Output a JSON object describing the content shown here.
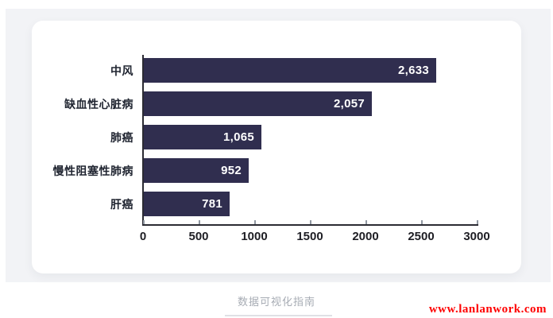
{
  "page": {
    "footer_caption": "数据可视化指南",
    "watermark": "www.lanlanwork.com",
    "colors": {
      "background": "#ffffff",
      "panel": "#f2f3f6",
      "card": "#ffffff",
      "bar": "#302e4f",
      "axis": "#2b2b33",
      "tick": "#9097a1",
      "category_label": "#1f2430",
      "value_label": "#ffffff",
      "caption": "#a7acb4",
      "watermark": "#ff0000"
    }
  },
  "chart_data": {
    "type": "bar",
    "orientation": "horizontal",
    "title": "",
    "xlabel": "",
    "ylabel": "",
    "categories": [
      "中风",
      "缺血性心脏病",
      "肺癌",
      "慢性阻塞性肺病",
      "肝癌"
    ],
    "values": [
      2633,
      2057,
      1065,
      952,
      781
    ],
    "value_labels": [
      "2,633",
      "2,057",
      "1,065",
      "952",
      "781"
    ],
    "xlim": [
      0,
      3000
    ],
    "x_ticks": [
      0,
      500,
      1000,
      1500,
      2000,
      2500,
      3000
    ],
    "x_tick_labels": [
      "0",
      "500",
      "1000",
      "1500",
      "2000",
      "2500",
      "3000"
    ],
    "grid": false,
    "legend": false,
    "bar_color": "#302e4f",
    "value_label_position": "inside-end"
  }
}
